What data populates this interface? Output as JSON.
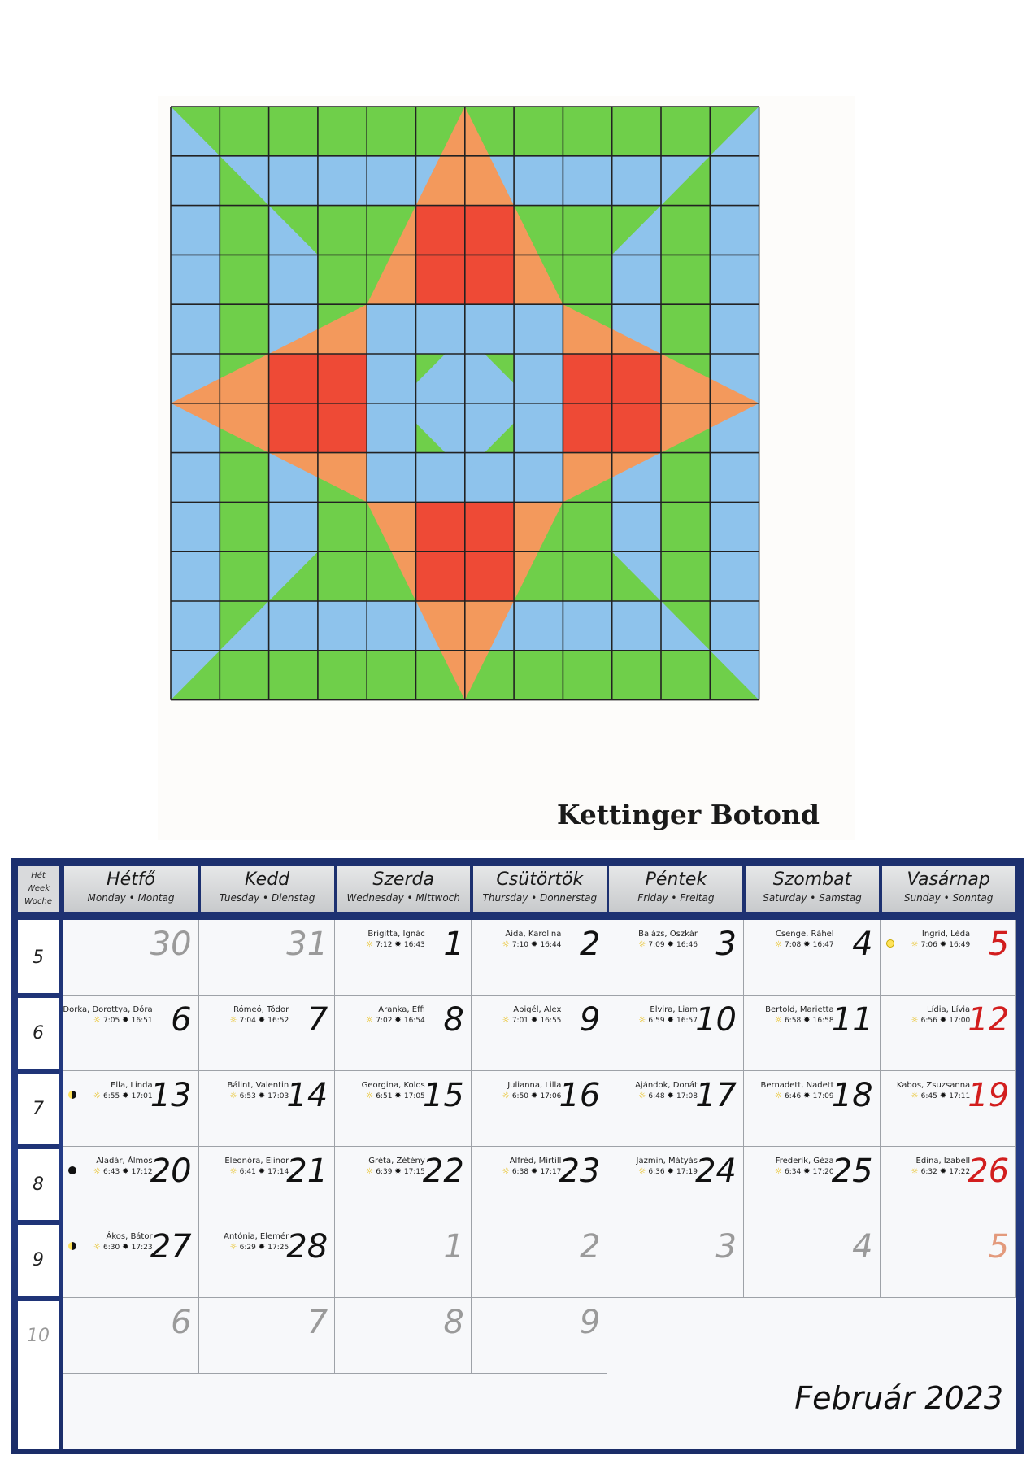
{
  "artwork": {
    "artist": "Kettinger Botond"
  },
  "calendar": {
    "week_header": [
      "Hét",
      "Week",
      "Woche"
    ],
    "days": [
      {
        "name": "Hétfő",
        "sub": "Monday • Montag"
      },
      {
        "name": "Kedd",
        "sub": "Tuesday • Dienstag"
      },
      {
        "name": "Szerda",
        "sub": "Wednesday • Mittwoch"
      },
      {
        "name": "Csütörtök",
        "sub": "Thursday • Donnerstag"
      },
      {
        "name": "Péntek",
        "sub": "Friday • Freitag"
      },
      {
        "name": "Szombat",
        "sub": "Saturday • Samstag"
      },
      {
        "name": "Vasárnap",
        "sub": "Sunday • Sonntag"
      }
    ],
    "weeks": [
      "5",
      "6",
      "7",
      "8",
      "9",
      "10"
    ],
    "month_title": "Február 2023",
    "rows": [
      [
        {
          "d": "30",
          "style": "gray"
        },
        {
          "d": "31",
          "style": "gray"
        },
        {
          "d": "1",
          "names": "Brigitta, Ignác",
          "rise": "7:12",
          "set": "16:43"
        },
        {
          "d": "2",
          "names": "Aida, Karolina",
          "rise": "7:10",
          "set": "16:44"
        },
        {
          "d": "3",
          "names": "Balázs, Oszkár",
          "rise": "7:09",
          "set": "16:46"
        },
        {
          "d": "4",
          "names": "Csenge, Ráhel",
          "rise": "7:08",
          "set": "16:47"
        },
        {
          "d": "5",
          "style": "red",
          "names": "Ingrid, Léda",
          "rise": "7:06",
          "set": "16:49",
          "moon": "full"
        }
      ],
      [
        {
          "d": "6",
          "names": "Dorka, Dorottya, Dóra",
          "rise": "7:05",
          "set": "16:51"
        },
        {
          "d": "7",
          "names": "Rómeó, Tódor",
          "rise": "7:04",
          "set": "16:52"
        },
        {
          "d": "8",
          "names": "Aranka, Effi",
          "rise": "7:02",
          "set": "16:54"
        },
        {
          "d": "9",
          "names": "Abigél, Alex",
          "rise": "7:01",
          "set": "16:55"
        },
        {
          "d": "10",
          "names": "Elvira, Liam",
          "rise": "6:59",
          "set": "16:57"
        },
        {
          "d": "11",
          "names": "Bertold, Marietta",
          "rise": "6:58",
          "set": "16:58"
        },
        {
          "d": "12",
          "style": "red",
          "names": "Lídia, Lívia",
          "rise": "6:56",
          "set": "17:00"
        }
      ],
      [
        {
          "d": "13",
          "names": "Ella, Linda",
          "rise": "6:55",
          "set": "17:01",
          "moon": "last"
        },
        {
          "d": "14",
          "names": "Bálint, Valentin",
          "rise": "6:53",
          "set": "17:03"
        },
        {
          "d": "15",
          "names": "Georgina, Kolos",
          "rise": "6:51",
          "set": "17:05"
        },
        {
          "d": "16",
          "names": "Julianna, Lilla",
          "rise": "6:50",
          "set": "17:06"
        },
        {
          "d": "17",
          "names": "Ajándok, Donát",
          "rise": "6:48",
          "set": "17:08"
        },
        {
          "d": "18",
          "names": "Bernadett, Nadett",
          "rise": "6:46",
          "set": "17:09"
        },
        {
          "d": "19",
          "style": "red",
          "names": "Kabos, Zsuzsanna",
          "rise": "6:45",
          "set": "17:11"
        }
      ],
      [
        {
          "d": "20",
          "names": "Aladár, Álmos",
          "rise": "6:43",
          "set": "17:12",
          "moon": "new"
        },
        {
          "d": "21",
          "names": "Eleonóra, Elinor",
          "rise": "6:41",
          "set": "17:14"
        },
        {
          "d": "22",
          "names": "Gréta, Zétény",
          "rise": "6:39",
          "set": "17:15"
        },
        {
          "d": "23",
          "names": "Alfréd, Mirtill",
          "rise": "6:38",
          "set": "17:17"
        },
        {
          "d": "24",
          "names": "Jázmin, Mátyás",
          "rise": "6:36",
          "set": "17:19"
        },
        {
          "d": "25",
          "names": "Frederik, Géza",
          "rise": "6:34",
          "set": "17:20"
        },
        {
          "d": "26",
          "style": "red",
          "names": "Edina, Izabell",
          "rise": "6:32",
          "set": "17:22"
        }
      ],
      [
        {
          "d": "27",
          "names": "Ákos, Bátor",
          "rise": "6:30",
          "set": "17:23",
          "moon": "first"
        },
        {
          "d": "28",
          "names": "Antónia, Elemér",
          "rise": "6:29",
          "set": "17:25"
        },
        {
          "d": "1",
          "style": "gray"
        },
        {
          "d": "2",
          "style": "gray"
        },
        {
          "d": "3",
          "style": "gray"
        },
        {
          "d": "4",
          "style": "gray"
        },
        {
          "d": "5",
          "style": "salmon"
        }
      ],
      [
        {
          "d": "6",
          "style": "gray"
        },
        {
          "d": "7",
          "style": "gray"
        },
        {
          "d": "8",
          "style": "gray"
        },
        {
          "d": "9",
          "style": "gray"
        }
      ]
    ],
    "colors": {
      "frame": "#1f3477",
      "sunday": "#d21e1e",
      "muted": "#9a9a9a"
    }
  }
}
